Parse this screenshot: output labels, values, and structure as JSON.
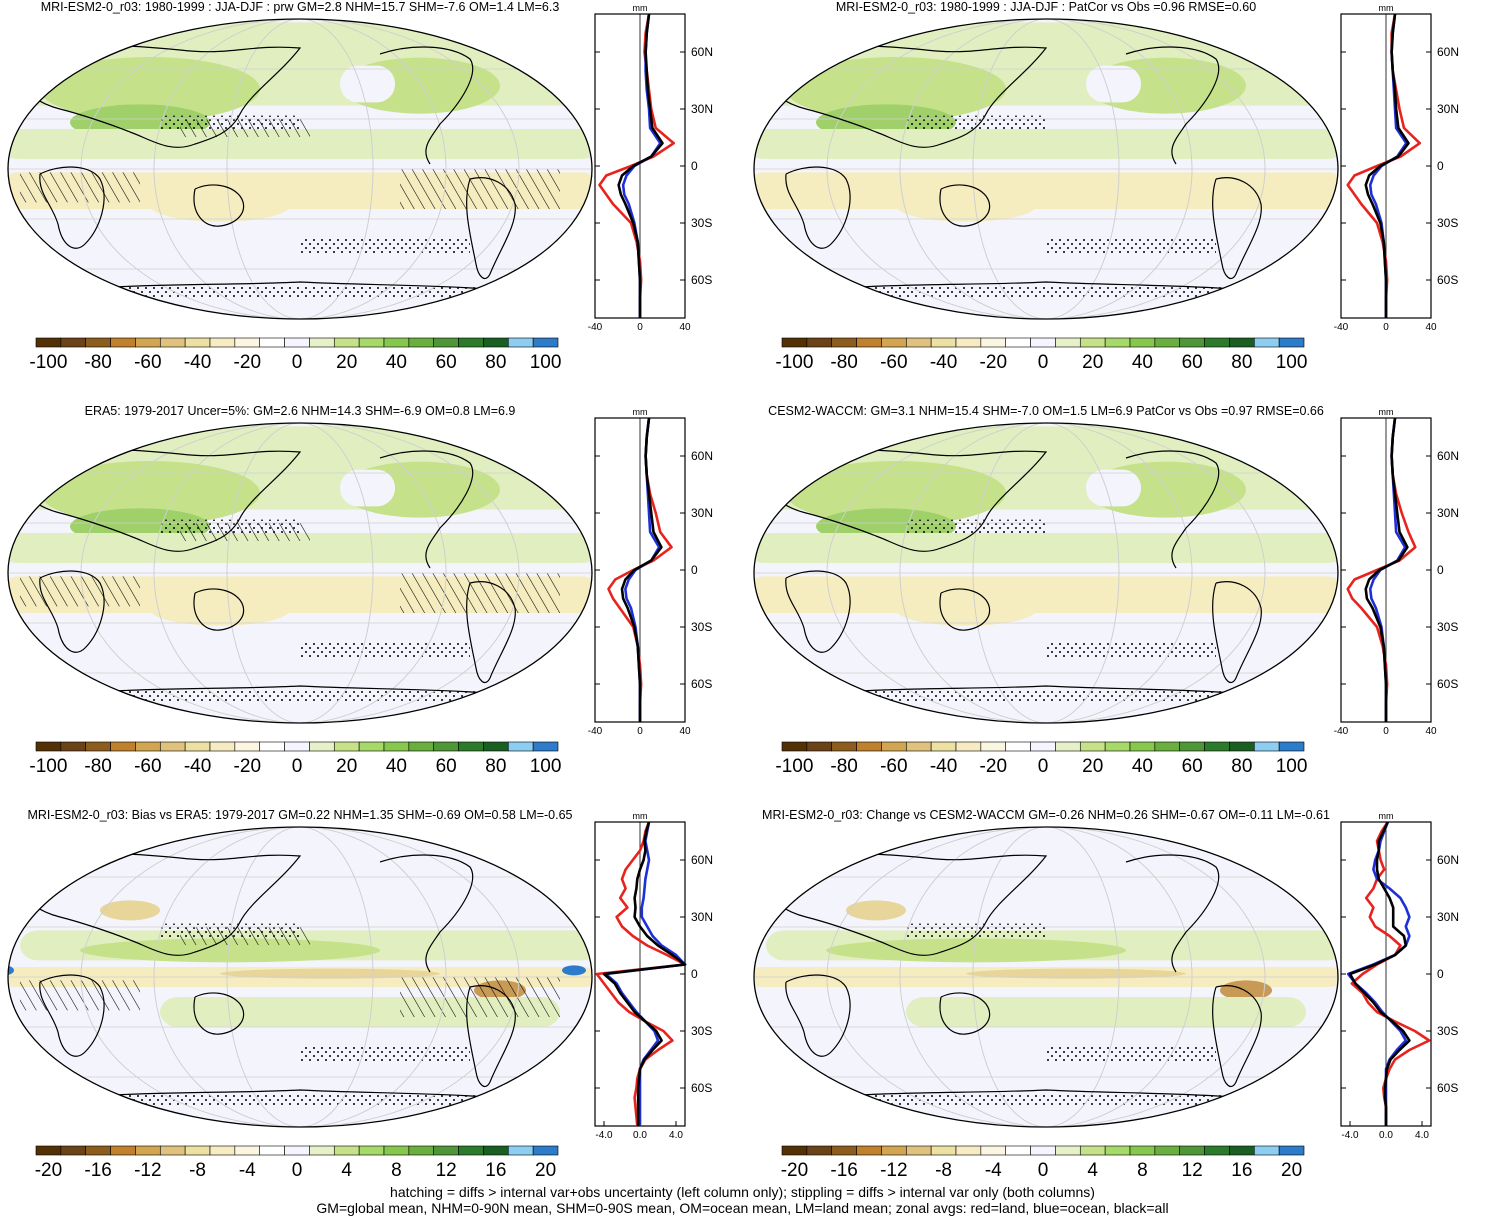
{
  "colorbar_colors": [
    "#543005",
    "#6b4318",
    "#8c5d1e",
    "#bf812d",
    "#d2a552",
    "#dfc27d",
    "#ece0a3",
    "#f6ebc2",
    "#faf6e2",
    "#ffffff",
    "#f5f5ff",
    "#e6f0c9",
    "#c5e28a",
    "#a6d96a",
    "#88c74e",
    "#6aae3f",
    "#4f9638",
    "#2c7a2c",
    "#1a5e22",
    "#8ccdf0",
    "#2d7cc9"
  ],
  "map_colors": {
    "ocean": "#f4f4fc",
    "green1": "#e1efc0",
    "green2": "#c5e28a",
    "green3": "#9fd06a",
    "tan1": "#f5ecc0",
    "tan2": "#e8d59a",
    "tan3": "#c89a55",
    "blue": "#2d7cc9"
  },
  "line_colors": {
    "land": "#e8231e",
    "ocean": "#1f2fd8",
    "all": "#000000"
  },
  "footnote": {
    "line1": "hatching = diffs > internal var+obs uncertainty (left column only); stippling = diffs > internal var only (both columns)",
    "line2": "GM=global mean, NHM=0-90N mean, SHM=0-90S mean, OM=ocean mean, LM=land mean; zonal avgs: red=land, blue=ocean, black=all"
  },
  "chart_data": [
    {
      "type": "map",
      "title": "MRI-ESM2-0_r03: 1980-1999 : JJA-DJF : prw GM=2.8 NHM=15.7 SHM=-7.6 OM=1.4 LM=6.3",
      "hatching": true,
      "stippling": true,
      "pattern": "abs",
      "colorbar": {
        "ticks": [
          "-100",
          "-80",
          "-60",
          "-40",
          "-20",
          "0",
          "20",
          "40",
          "60",
          "80",
          "100"
        ]
      },
      "zonal": {
        "unit": "mm",
        "xlim": [
          -40,
          40
        ],
        "xticks": [
          "-40",
          "0",
          "40"
        ],
        "lat_ticks": [
          "60N",
          "30N",
          "0",
          "30S",
          "60S"
        ],
        "lat": [
          80,
          70,
          60,
          50,
          40,
          30,
          20,
          12,
          5,
          0,
          -5,
          -10,
          -15,
          -20,
          -30,
          -40,
          -50,
          -60,
          -70,
          -80
        ],
        "land": [
          8,
          5,
          4,
          6,
          8,
          10,
          14,
          30,
          12,
          -8,
          -30,
          -36,
          -30,
          -24,
          -8,
          -3,
          0,
          1,
          0,
          0
        ],
        "ocean": [
          8,
          6,
          5,
          5,
          6,
          8,
          9,
          18,
          10,
          -5,
          -12,
          -15,
          -14,
          -10,
          -5,
          -2,
          -1,
          0,
          0,
          0
        ],
        "all": [
          8,
          6,
          5,
          6,
          7,
          9,
          11,
          20,
          10,
          -6,
          -16,
          -19,
          -17,
          -13,
          -6,
          -2,
          -1,
          0,
          0,
          0
        ]
      }
    },
    {
      "type": "map",
      "title": "MRI-ESM2-0_r03: 1980-1999 : JJA-DJF : PatCor vs Obs =0.96 RMSE=0.60",
      "hatching": false,
      "stippling": true,
      "pattern": "abs",
      "colorbar": {
        "ticks": [
          "-100",
          "-80",
          "-60",
          "-40",
          "-20",
          "0",
          "20",
          "40",
          "60",
          "80",
          "100"
        ]
      },
      "zonal": {
        "unit": "mm",
        "xlim": [
          -40,
          40
        ],
        "xticks": [
          "-40",
          "0",
          "40"
        ],
        "lat_ticks": [
          "60N",
          "30N",
          "0",
          "30S",
          "60S"
        ],
        "lat": [
          80,
          70,
          60,
          50,
          40,
          30,
          20,
          12,
          5,
          0,
          -5,
          -10,
          -15,
          -20,
          -30,
          -40,
          -50,
          -60,
          -70,
          -80
        ],
        "land": [
          8,
          5,
          5,
          6,
          9,
          12,
          16,
          30,
          13,
          -8,
          -28,
          -34,
          -28,
          -22,
          -8,
          -3,
          0,
          1,
          0,
          0
        ],
        "ocean": [
          8,
          6,
          5,
          6,
          7,
          8,
          9,
          18,
          10,
          -4,
          -11,
          -14,
          -13,
          -9,
          -4,
          -2,
          -1,
          0,
          0,
          0
        ],
        "all": [
          8,
          6,
          5,
          6,
          8,
          9,
          11,
          20,
          11,
          -5,
          -15,
          -18,
          -16,
          -12,
          -5,
          -2,
          -1,
          0,
          0,
          0
        ]
      }
    },
    {
      "type": "map",
      "title": "ERA5: 1979-2017 Uncer=5%: GM=2.6 NHM=14.3 SHM=-6.9 OM=0.8 LM=6.9",
      "hatching": true,
      "stippling": true,
      "pattern": "abs",
      "colorbar": {
        "ticks": [
          "-100",
          "-80",
          "-60",
          "-40",
          "-20",
          "0",
          "20",
          "40",
          "60",
          "80",
          "100"
        ]
      },
      "zonal": {
        "unit": "mm",
        "xlim": [
          -40,
          40
        ],
        "xticks": [
          "-40",
          "0",
          "40"
        ],
        "lat_ticks": [
          "60N",
          "30N",
          "0",
          "30S",
          "60S"
        ],
        "lat": [
          80,
          70,
          60,
          50,
          40,
          30,
          20,
          12,
          5,
          0,
          -5,
          -10,
          -15,
          -20,
          -30,
          -40,
          -50,
          -60,
          -70,
          -80
        ],
        "land": [
          8,
          6,
          5,
          6,
          9,
          14,
          18,
          28,
          12,
          -6,
          -22,
          -28,
          -24,
          -18,
          -6,
          -2,
          0,
          1,
          0,
          0
        ],
        "ocean": [
          8,
          6,
          5,
          6,
          7,
          8,
          9,
          17,
          10,
          -4,
          -10,
          -13,
          -12,
          -8,
          -4,
          -2,
          -1,
          0,
          0,
          0
        ],
        "all": [
          8,
          6,
          5,
          6,
          8,
          10,
          12,
          19,
          10,
          -5,
          -13,
          -16,
          -15,
          -11,
          -5,
          -2,
          -1,
          0,
          0,
          0
        ]
      }
    },
    {
      "type": "map",
      "title": "CESM2-WACCM: GM=3.1 NHM=15.4 SHM=-7.0 OM=1.5 LM=6.9 PatCor vs Obs =0.97 RMSE=0.66",
      "hatching": false,
      "stippling": true,
      "pattern": "abs",
      "colorbar": {
        "ticks": [
          "-100",
          "-80",
          "-60",
          "-40",
          "-20",
          "0",
          "20",
          "40",
          "60",
          "80",
          "100"
        ]
      },
      "zonal": {
        "unit": "mm",
        "xlim": [
          -40,
          40
        ],
        "xticks": [
          "-40",
          "0",
          "40"
        ],
        "lat_ticks": [
          "60N",
          "30N",
          "0",
          "30S",
          "60S"
        ],
        "lat": [
          80,
          70,
          60,
          50,
          40,
          30,
          20,
          12,
          5,
          0,
          -5,
          -10,
          -15,
          -20,
          -30,
          -40,
          -50,
          -60,
          -70,
          -80
        ],
        "land": [
          8,
          6,
          5,
          6,
          9,
          14,
          20,
          26,
          12,
          -8,
          -28,
          -34,
          -30,
          -22,
          -8,
          -3,
          0,
          1,
          0,
          0
        ],
        "ocean": [
          8,
          6,
          5,
          6,
          7,
          8,
          9,
          17,
          10,
          -5,
          -11,
          -14,
          -13,
          -9,
          -4,
          -2,
          -1,
          0,
          0,
          0
        ],
        "all": [
          8,
          6,
          5,
          6,
          8,
          10,
          12,
          19,
          11,
          -6,
          -15,
          -18,
          -17,
          -12,
          -5,
          -2,
          -1,
          0,
          0,
          0
        ]
      }
    },
    {
      "type": "map",
      "title": "MRI-ESM2-0_r03: Bias vs ERA5: 1979-2017 GM=0.22 NHM=1.35 SHM=-0.69 OM=0.58 LM=-0.65",
      "hatching": true,
      "stippling": true,
      "pattern": "diff",
      "colorbar": {
        "ticks": [
          "-20",
          "-16",
          "-12",
          "-8",
          "-4",
          "0",
          "4",
          "8",
          "12",
          "16",
          "20"
        ]
      },
      "zonal": {
        "unit": "mm",
        "xlim": [
          -5,
          5
        ],
        "xticks": [
          "-4.0",
          "0.0",
          "4.0"
        ],
        "lat_ticks": [
          "60N",
          "30N",
          "0",
          "30S",
          "60S"
        ],
        "lat": [
          80,
          75,
          70,
          65,
          60,
          55,
          50,
          45,
          40,
          35,
          30,
          25,
          20,
          15,
          10,
          5,
          0,
          -5,
          -10,
          -15,
          -20,
          -25,
          -30,
          -35,
          -40,
          -45,
          -50,
          -55,
          -60,
          -65,
          -70,
          -75,
          -80
        ],
        "land": [
          1.0,
          0.6,
          0.4,
          0,
          -0.8,
          -1.6,
          -2.0,
          -1.6,
          -2.2,
          -1.4,
          -2.6,
          -2.0,
          -0.8,
          0.8,
          3.0,
          5.0,
          -4.8,
          -4.0,
          -3.2,
          -2.4,
          -1.2,
          0.6,
          2.6,
          3.6,
          2.0,
          0.6,
          0,
          -0.3,
          -0.4,
          -0.6,
          -0.5,
          -0.4,
          -0.3
        ],
        "ocean": [
          1.0,
          0.8,
          0.6,
          0.8,
          1.0,
          0.8,
          0.6,
          0.5,
          0.4,
          0.2,
          0.2,
          0.8,
          1.4,
          2.4,
          4.0,
          5.0,
          -3.8,
          -2.6,
          -2.0,
          -1.2,
          -0.4,
          0.6,
          1.6,
          2.0,
          1.2,
          0.4,
          0,
          0,
          0,
          0,
          0,
          0,
          0
        ],
        "all": [
          1.0,
          0.7,
          0.5,
          0.6,
          0.4,
          0,
          -0.3,
          -0.4,
          -0.6,
          -0.5,
          -0.6,
          0,
          0.8,
          2.0,
          3.6,
          5.0,
          -4.0,
          -2.8,
          -2.2,
          -1.4,
          -0.6,
          0.6,
          1.8,
          2.4,
          1.4,
          0.5,
          0,
          -0.1,
          -0.2,
          -0.2,
          -0.2,
          -0.2,
          -0.2
        ]
      }
    },
    {
      "type": "map",
      "title": "MRI-ESM2-0_r03: Change vs CESM2-WACCM GM=-0.26 NHM=0.26 SHM=-0.67 OM=-0.11 LM=-0.61",
      "hatching": false,
      "stippling": true,
      "pattern": "diff",
      "colorbar": {
        "ticks": [
          "-20",
          "-16",
          "-12",
          "-8",
          "-4",
          "0",
          "4",
          "8",
          "12",
          "16",
          "20"
        ]
      },
      "zonal": {
        "unit": "mm",
        "xlim": [
          -5,
          5
        ],
        "xticks": [
          "-4.0",
          "0.0",
          "4.0"
        ],
        "lat_ticks": [
          "60N",
          "30N",
          "0",
          "30S",
          "60S"
        ],
        "lat": [
          80,
          75,
          70,
          65,
          60,
          55,
          50,
          45,
          40,
          35,
          30,
          25,
          20,
          15,
          10,
          5,
          0,
          -5,
          -10,
          -15,
          -20,
          -25,
          -30,
          -35,
          -40,
          -45,
          -50,
          -55,
          -60,
          -65,
          -70,
          -75,
          -80
        ],
        "land": [
          0.2,
          -0.5,
          -1.0,
          -0.8,
          -0.6,
          -0.2,
          -1.0,
          -1.4,
          -2.2,
          -1.4,
          -1.8,
          -1.2,
          0.4,
          1.6,
          1.0,
          -1.0,
          -2.6,
          -3.8,
          -2.6,
          -2.0,
          -1.0,
          1.0,
          3.2,
          4.8,
          2.6,
          1.0,
          0.4,
          0,
          -0.3,
          -0.2,
          0,
          0,
          0
        ],
        "ocean": [
          0.2,
          -0.2,
          -0.6,
          -0.8,
          -1.2,
          -1.4,
          -1.0,
          0.4,
          1.6,
          2.2,
          2.6,
          2.2,
          2.6,
          2.2,
          1.0,
          -1.4,
          -4.2,
          -3.4,
          -2.2,
          -1.2,
          -0.4,
          0.6,
          1.6,
          2.2,
          1.2,
          0.4,
          0,
          0,
          0,
          0,
          0,
          0,
          0
        ],
        "all": [
          0.2,
          -0.3,
          -0.8,
          -0.8,
          -1.0,
          -1.0,
          -0.8,
          -0.2,
          0.4,
          0.8,
          0.8,
          0.8,
          2.0,
          2.2,
          1.0,
          -1.2,
          -4.0,
          -3.4,
          -2.4,
          -1.4,
          -0.6,
          0.7,
          1.9,
          2.6,
          1.5,
          0.5,
          0.1,
          0,
          -0.1,
          -0.1,
          0,
          0,
          0
        ]
      }
    }
  ]
}
